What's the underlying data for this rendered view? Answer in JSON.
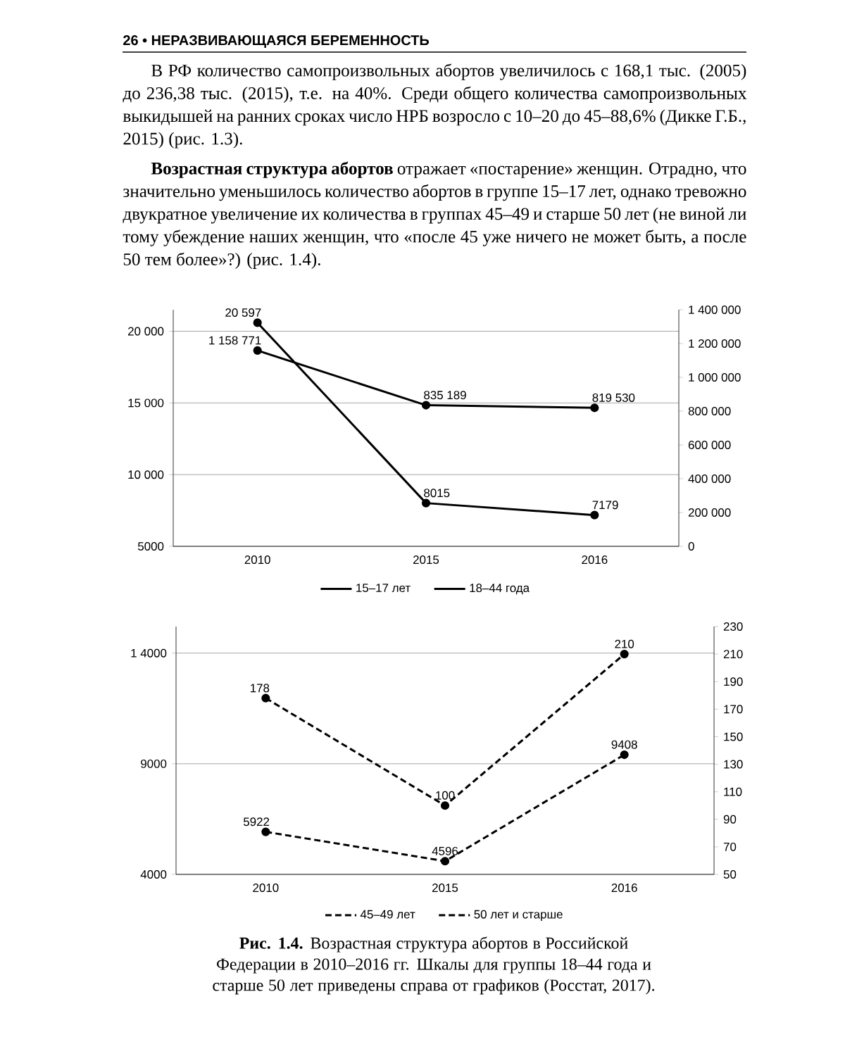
{
  "chart_data": [
    {
      "type": "line",
      "categories": [
        "2010",
        "2015",
        "2016"
      ],
      "annotations": [
        "26 • НЕРАЗВИВАЮЩАЯСЯ БЕРЕМЕННОСТЬ",
        "В РФ количество самопроизвольных абортов увеличилось с 168,1 тыс. (2005) до 236,38 тыс. (2015), т.е. на 40%. Среди общего количества самопроизвольных выкидышей на ранних сроках число НРБ возросло с 10–20 до 45–88,6% (Дикке Г.Б., 2015) (рис. 1.3).",
        "**Возрастная структура абортов** отражает «постарение» женщин. Отрадно, что значительно уменьшилось количество абортов в группе 15–17 лет, однако тревожно двукратное увеличение их количества в группах 45–49 и старше 50 лет (не виной ли тому убеждение наших женщин, что «после 45 уже ничего не может быть, а после 50 тем более»?) (рис. 1.4)."
      ],
      "series": [
        {
          "name": "15–17 лет",
          "color": "#000000",
          "values": [
            20597,
            8015,
            7179
          ],
          "value_labels": [
            "20 597",
            "8015",
            "7179"
          ]
        },
        {
          "name": "18–44 года",
          "color": "#000000",
          "axis": "y2",
          "values": [
            1158771,
            835189,
            819530
          ],
          "value_labels": [
            "1 158 771",
            "835 189",
            "819 530"
          ]
        }
      ],
      "ylim": [
        5000,
        21500
      ],
      "yticks": [
        5000,
        {
          "value": 10000,
          "label": "10 000"
        },
        {
          "value": 15000,
          "label": "15 000"
        },
        {
          "value": 20000,
          "label": "20 000"
        }
      ],
      "y2lim": [
        0,
        1400000
      ],
      "y2ticks": [
        0,
        {
          "value": 200000,
          "label": "200 000"
        },
        {
          "value": 400000,
          "label": "400 000"
        },
        {
          "value": 600000,
          "label": "600 000"
        },
        {
          "value": 800000,
          "label": "800 000"
        },
        {
          "value": 1000000,
          "label": "1 000 000"
        },
        {
          "value": 1200000,
          "label": "1 200 000"
        },
        {
          "value": 1400000,
          "label": "1 400 000"
        }
      ],
      "grid": "y",
      "legend": "bottom",
      "marker": "circle",
      "line_style": "solid"
    },
    {
      "type": "line",
      "categories": [
        "2010",
        "2015",
        "2016"
      ],
      "annotations": [
        "**Рис. 1.4.** Возрастная структура абортов в Российской Федерации в 2010–2016 гг. Шкалы для группы 18–44 года и старше 50 лет приведены справа от графиков (Росстат, 2017)."
      ],
      "series": [
        {
          "name": "45–49 лет",
          "color": "#000000",
          "values": [
            5922,
            4596,
            9408
          ],
          "value_labels": [
            "5922",
            "4596",
            "9408"
          ]
        },
        {
          "name": "50 лет и старше",
          "color": "#000000",
          "axis": "y2",
          "values": [
            178,
            100,
            210
          ],
          "value_labels": [
            "178",
            "100",
            "210"
          ]
        }
      ],
      "ylim": [
        4000,
        15200
      ],
      "yticks": [
        4000,
        9000,
        {
          "value": 14000,
          "label": "1 4000"
        }
      ],
      "y2lim": [
        50,
        230
      ],
      "y2ticks": [
        50,
        70,
        90,
        110,
        130,
        150,
        170,
        190,
        210,
        230
      ],
      "grid": "y",
      "legend": "bottom",
      "marker": "circle",
      "line_style": "dashed"
    }
  ]
}
